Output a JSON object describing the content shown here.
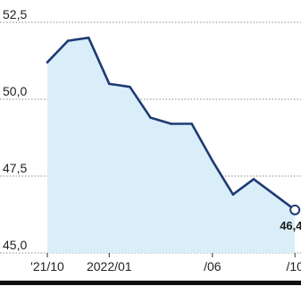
{
  "chart_data": {
    "type": "area",
    "x": [
      "2021/10",
      "2021/11",
      "2021/12",
      "2022/01",
      "2022/02",
      "2022/03",
      "2022/04",
      "2022/05",
      "2022/06",
      "2022/07",
      "2022/08",
      "2022/09",
      "2022/10"
    ],
    "values": [
      51.2,
      51.9,
      52.0,
      50.5,
      50.4,
      49.4,
      49.2,
      49.2,
      48.0,
      46.9,
      47.4,
      46.9,
      46.4
    ],
    "y_ticks": [
      "52,5",
      "50,0",
      "47,5",
      "45,0"
    ],
    "y_tick_values": [
      52.5,
      50.0,
      47.5,
      45.0
    ],
    "x_ticks": [
      "'21/10",
      "2022/01",
      "/06",
      "/10"
    ],
    "x_tick_index": [
      0,
      3,
      8,
      12
    ],
    "ylim": [
      45.0,
      52.5
    ],
    "last_label": "46,4",
    "grid": true,
    "line_color": "#1f3b73",
    "fill_color": "#d9eef9",
    "grid_color": "#8a8a8a"
  }
}
